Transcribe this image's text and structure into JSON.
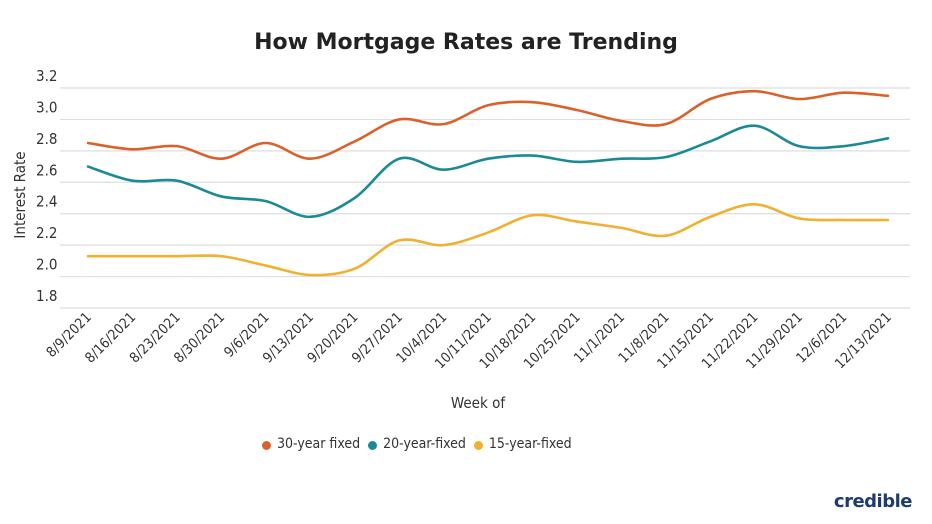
{
  "chart_data": {
    "type": "line",
    "title": "How Mortgage Rates are Trending",
    "xlabel": "Week of",
    "ylabel": "Interest Rate",
    "ylim": [
      1.8,
      3.2
    ],
    "yticks": [
      "3.2",
      "3.0",
      "2.8",
      "2.6",
      "2.4",
      "2.2",
      "2.0",
      "1.8"
    ],
    "grid": true,
    "legend_position": "bottom",
    "categories": [
      "8/9/2021",
      "8/16/2021",
      "8/23/2021",
      "8/30/2021",
      "9/6/2021",
      "9/13/2021",
      "9/20/2021",
      "9/27/2021",
      "10/4/2021",
      "10/11/2021",
      "10/18/2021",
      "10/25/2021",
      "11/1/2021",
      "11/8/2021",
      "11/15/2021",
      "11/22/2021",
      "11/29/2021",
      "12/6/2021",
      "12/13/2021"
    ],
    "series": [
      {
        "name": "30-year fixed",
        "color": "#d9622b",
        "values": [
          2.85,
          2.81,
          2.83,
          2.75,
          2.85,
          2.75,
          2.86,
          3.0,
          2.97,
          3.09,
          3.11,
          3.06,
          2.99,
          2.97,
          3.13,
          3.18,
          3.13,
          3.17,
          3.15
        ]
      },
      {
        "name": "20-year-fixed",
        "color": "#1a8a94",
        "values": [
          2.7,
          2.61,
          2.61,
          2.51,
          2.48,
          2.38,
          2.5,
          2.75,
          2.68,
          2.75,
          2.77,
          2.73,
          2.75,
          2.76,
          2.86,
          2.96,
          2.83,
          2.83,
          2.88
        ]
      },
      {
        "name": "15-year-fixed",
        "color": "#f0b030",
        "values": [
          2.13,
          2.13,
          2.13,
          2.13,
          2.07,
          2.01,
          2.05,
          2.23,
          2.2,
          2.28,
          2.39,
          2.35,
          2.31,
          2.26,
          2.38,
          2.46,
          2.37,
          2.36,
          2.36
        ]
      }
    ]
  },
  "logo": "credible"
}
